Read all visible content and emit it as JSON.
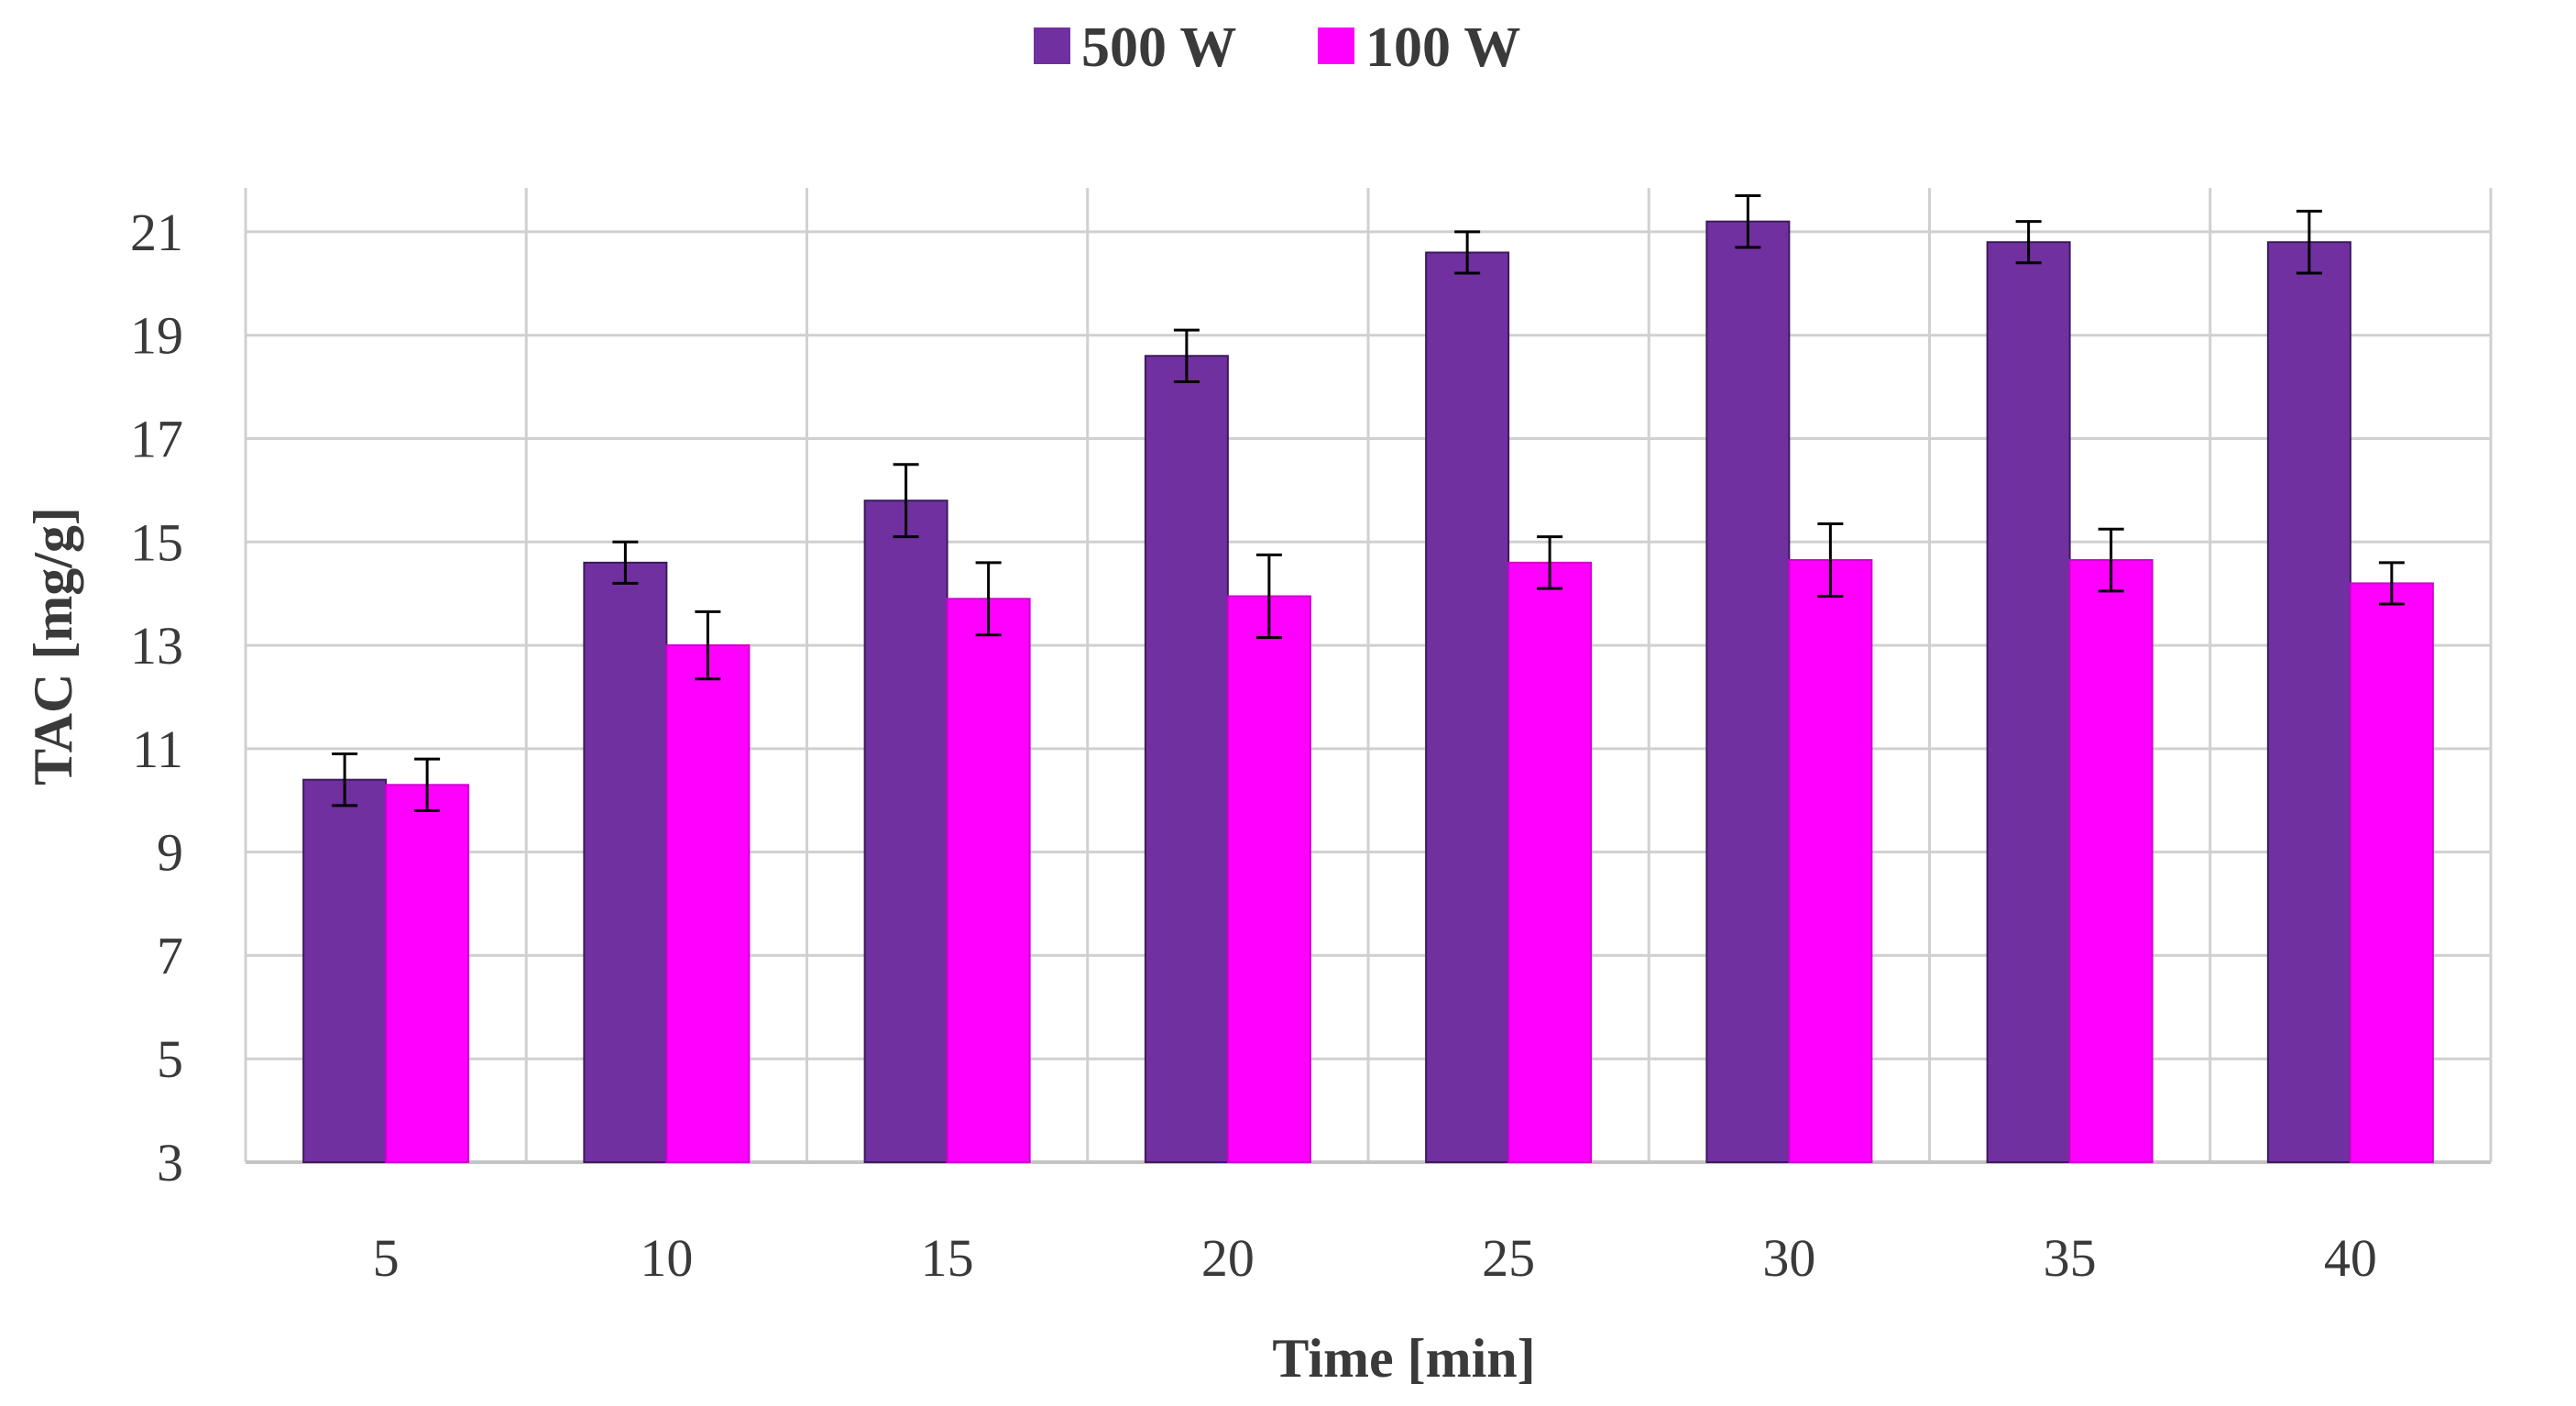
{
  "chart_data": {
    "type": "bar",
    "title": "",
    "xlabel": "Time [min]",
    "ylabel": "TAC [mg/g]",
    "categories": [
      "5",
      "10",
      "15",
      "20",
      "25",
      "30",
      "35",
      "40"
    ],
    "series": [
      {
        "name": "500 W",
        "color": "#7030A0",
        "values": [
          10.4,
          14.6,
          15.8,
          18.6,
          20.6,
          21.2,
          20.8,
          20.8
        ],
        "errors": [
          0.5,
          0.4,
          0.7,
          0.5,
          0.4,
          0.5,
          0.4,
          0.6
        ]
      },
      {
        "name": "100 W",
        "color": "#FF00FF",
        "values": [
          10.3,
          13.0,
          13.9,
          13.95,
          14.6,
          14.65,
          14.65,
          14.2
        ],
        "errors": [
          0.5,
          0.65,
          0.7,
          0.8,
          0.5,
          0.7,
          0.6,
          0.4
        ]
      }
    ],
    "ylim": [
      3,
      22
    ],
    "yticks": [
      "3",
      "5",
      "7",
      "9",
      "11",
      "13",
      "15",
      "17",
      "19",
      "21"
    ],
    "grid": true,
    "legend_position": "top-center"
  }
}
